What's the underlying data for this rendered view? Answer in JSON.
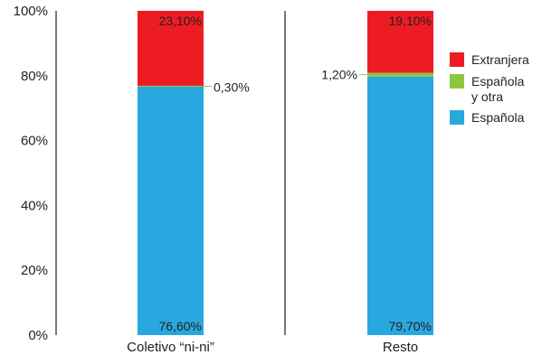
{
  "chart_data": {
    "type": "bar",
    "stacked": true,
    "percent": true,
    "categories": [
      "Coletivo “ni-ni”",
      "Resto"
    ],
    "series": [
      {
        "name": "Española",
        "values": [
          76.6,
          79.7
        ],
        "labels": [
          "76,60%",
          "79,70%"
        ],
        "color": "#29a8e0"
      },
      {
        "name": "Española y otra",
        "name_lines": [
          "Española",
          "y otra"
        ],
        "values": [
          0.3,
          1.2
        ],
        "labels": [
          "0,30%",
          "1,20%"
        ],
        "color": "#8dc63f"
      },
      {
        "name": "Extranjera",
        "values": [
          23.1,
          19.1
        ],
        "labels": [
          "23,10%",
          "19,10%"
        ],
        "color": "#ed1c24"
      }
    ],
    "yticks": [
      "0%",
      "20%",
      "40%",
      "60%",
      "80%",
      "100%"
    ],
    "ylim": [
      0,
      100
    ],
    "legend_order": [
      "Extranjera",
      "Española y otra",
      "Española"
    ],
    "legend_position": "right",
    "grid": false
  }
}
